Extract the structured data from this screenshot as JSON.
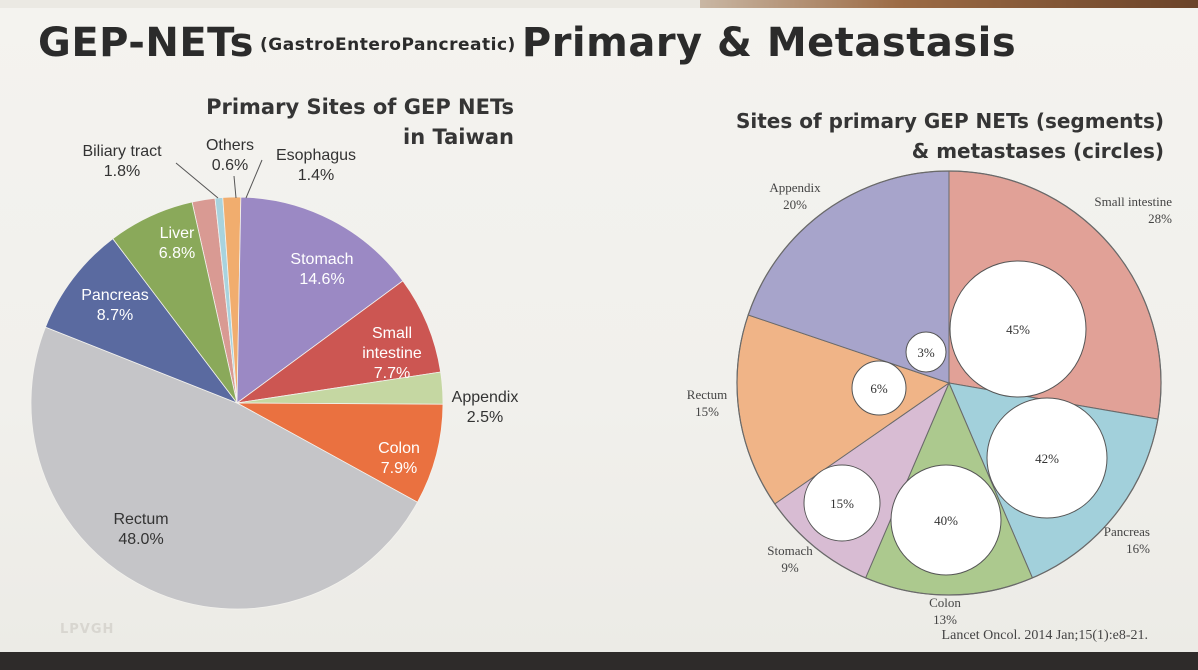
{
  "slide": {
    "title_main": "GEP-NETs",
    "title_sub": "(GastroEnteroPancreatic)",
    "title_rest": "Primary & Metastasis",
    "citation": "Lancet Oncol. 2014 Jan;15(1):e8-21.",
    "logo_text": "LPVGH"
  },
  "chart_data": [
    {
      "type": "pie",
      "title_line1": "Primary Sites of GEP NETs",
      "title_line2": "in Taiwan",
      "slices": [
        {
          "label": "Biliary tract",
          "value": 1.8,
          "value_text": "1.8%",
          "color": "#d99a93"
        },
        {
          "label": "Others",
          "value": 0.6,
          "value_text": "0.6%",
          "color": "#a8d3de"
        },
        {
          "label": "Esophagus",
          "value": 1.4,
          "value_text": "1.4%",
          "color": "#f1ad6e"
        },
        {
          "label": "Stomach",
          "value": 14.6,
          "value_text": "14.6%",
          "color": "#9b89c4"
        },
        {
          "label": "Small intestine",
          "value": 7.7,
          "value_text": "7.7%",
          "color": "#cc5652"
        },
        {
          "label": "Appendix",
          "value": 2.5,
          "value_text": "2.5%",
          "color": "#c5d7a2"
        },
        {
          "label": "Colon",
          "value": 7.9,
          "value_text": "7.9%",
          "color": "#ea7140"
        },
        {
          "label": "Rectum",
          "value": 48.0,
          "value_text": "48.0%",
          "color": "#c5c5c8"
        },
        {
          "label": "Pancreas",
          "value": 8.7,
          "value_text": "8.7%",
          "color": "#5a6aa0"
        },
        {
          "label": "Liver",
          "value": 6.8,
          "value_text": "6.8%",
          "color": "#8aa95a"
        }
      ]
    },
    {
      "type": "pie",
      "title_line1": "Sites of primary GEP NETs (segments)",
      "title_line2": "& metastases (circles)",
      "slices": [
        {
          "label": "Small intestine",
          "value": 28,
          "value_text": "28%",
          "color": "#e1a197",
          "metastasis": 45,
          "metastasis_text": "45%"
        },
        {
          "label": "Pancreas",
          "value": 16,
          "value_text": "16%",
          "color": "#a2d0db",
          "metastasis": 42,
          "metastasis_text": "42%"
        },
        {
          "label": "Colon",
          "value": 13,
          "value_text": "13%",
          "color": "#acc98e",
          "metastasis": 40,
          "metastasis_text": "40%"
        },
        {
          "label": "Stomach",
          "value": 9,
          "value_text": "9%",
          "color": "#d8bcd3",
          "metastasis": 15,
          "metastasis_text": "15%"
        },
        {
          "label": "Rectum",
          "value": 15,
          "value_text": "15%",
          "color": "#f0b487",
          "metastasis": 6,
          "metastasis_text": "6%"
        },
        {
          "label": "Appendix",
          "value": 20,
          "value_text": "20%",
          "color": "#a7a4cb",
          "metastasis": 3,
          "metastasis_text": "3%"
        }
      ]
    }
  ]
}
